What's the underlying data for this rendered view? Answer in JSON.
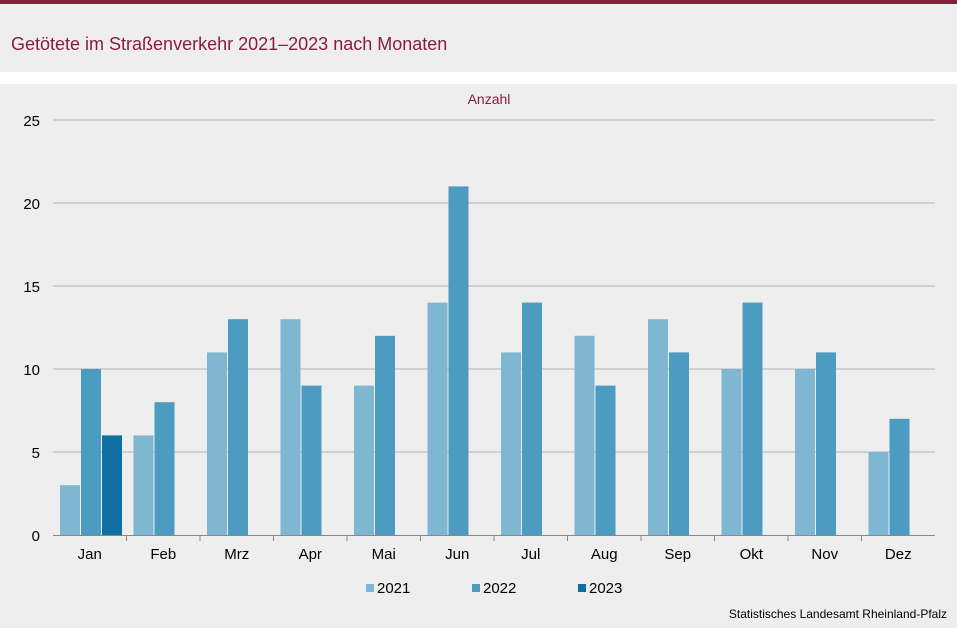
{
  "header": {
    "title": "Getötete im Straßenverkehr 2021–2023 nach Monaten"
  },
  "footer": {
    "source": "Statistisches Landesamt  Rheinland-Pfalz"
  },
  "colors": {
    "accent": "#8a1d3c",
    "series_2021": "#7fb7d3",
    "series_2022": "#4c9cc2",
    "series_2023": "#0f6fa0"
  },
  "chart_data": {
    "type": "bar",
    "ylabel": "Anzahl",
    "ylim": [
      0,
      25
    ],
    "yticks": [
      0,
      5,
      10,
      15,
      20,
      25
    ],
    "grid": true,
    "legend_position": "bottom",
    "categories": [
      "Jan",
      "Feb",
      "Mrz",
      "Apr",
      "Mai",
      "Jun",
      "Jul",
      "Aug",
      "Sep",
      "Okt",
      "Nov",
      "Dez"
    ],
    "series": [
      {
        "name": "2021",
        "values": [
          3,
          6,
          11,
          13,
          9,
          14,
          11,
          12,
          13,
          10,
          10,
          5
        ]
      },
      {
        "name": "2022",
        "values": [
          10,
          8,
          13,
          9,
          12,
          21,
          14,
          9,
          11,
          14,
          11,
          7
        ]
      },
      {
        "name": "2023",
        "values": [
          6,
          null,
          null,
          null,
          null,
          null,
          null,
          null,
          null,
          null,
          null,
          null
        ]
      }
    ]
  }
}
